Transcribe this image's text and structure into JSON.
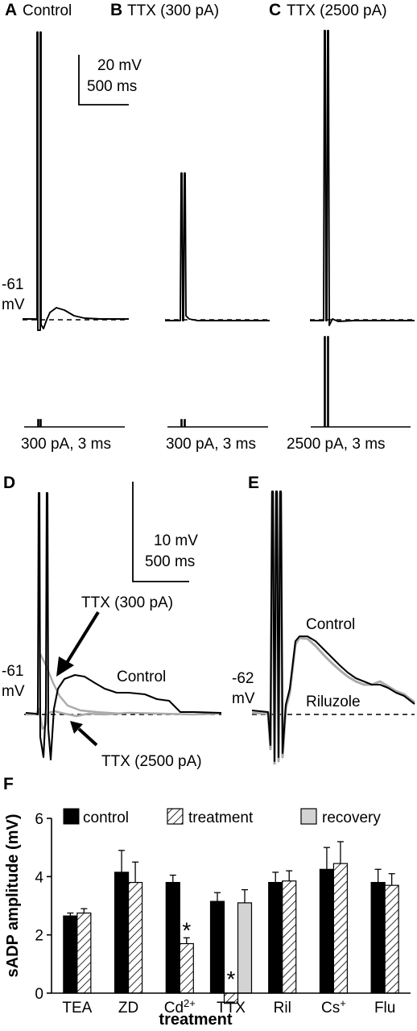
{
  "panels": {
    "A": {
      "letter": "A",
      "title": "Control"
    },
    "B": {
      "letter": "B",
      "title": "TTX (300 pA)"
    },
    "C": {
      "letter": "C",
      "title": "TTX (2500 pA)"
    },
    "D": {
      "letter": "D"
    },
    "E": {
      "letter": "E"
    },
    "F": {
      "letter": "F"
    }
  },
  "top_row": {
    "scale_bar": {
      "voltage": "20 mV",
      "time": "500 ms"
    },
    "rest_potential": {
      "value": "-61",
      "unit": "mV"
    },
    "stimulus_labels": [
      "300 pA, 3 ms",
      "300 pA, 3 ms",
      "2500 pA, 3 ms"
    ]
  },
  "panel_d": {
    "scale_bar": {
      "voltage": "10 mV",
      "time": "500 ms"
    },
    "rest_potential": {
      "value": "-61",
      "unit": "mV"
    },
    "annotations": {
      "ttx_300": "TTX (300 pA)",
      "control": "Control",
      "ttx_2500": "TTX (2500 pA)"
    }
  },
  "panel_e": {
    "rest_potential": {
      "value": "-62",
      "unit": "mV"
    },
    "annotations": {
      "control": "Control",
      "riluzole": "Riluzole"
    }
  },
  "chart_data": {
    "type": "bar",
    "xlabel": "treatment",
    "ylabel": "sADP amplitude (mV)",
    "ylim": [
      0,
      6
    ],
    "yticks": [
      "0",
      "2",
      "4",
      "6"
    ],
    "categories": [
      "TEA",
      "ZD",
      "Cd2+",
      "TTX",
      "Ril",
      "Cs+",
      "Flu"
    ],
    "category_labels": [
      {
        "base": "TEA",
        "sup": ""
      },
      {
        "base": "ZD",
        "sup": ""
      },
      {
        "base": "Cd",
        "sup": "2+"
      },
      {
        "base": "TTX",
        "sup": ""
      },
      {
        "base": "Ril",
        "sup": ""
      },
      {
        "base": "Cs",
        "sup": "+"
      },
      {
        "base": "Flu",
        "sup": ""
      }
    ],
    "series": [
      {
        "name": "control",
        "fill": "#000000",
        "values": [
          2.65,
          4.15,
          3.8,
          3.15,
          3.8,
          4.25,
          3.8
        ],
        "errors": [
          0.1,
          0.75,
          0.25,
          0.3,
          0.35,
          0.75,
          0.45
        ]
      },
      {
        "name": "treatment",
        "fill": "hatch",
        "values": [
          2.75,
          3.8,
          1.7,
          -0.35,
          3.85,
          4.45,
          3.7
        ],
        "errors": [
          0.15,
          0.7,
          0.2,
          0,
          0.35,
          0.75,
          0.4
        ]
      },
      {
        "name": "recovery",
        "fill": "#d3d3d3",
        "values": [
          null,
          null,
          null,
          3.1,
          null,
          null,
          null
        ],
        "errors": [
          null,
          null,
          null,
          0.45,
          null,
          null,
          null
        ]
      }
    ],
    "significance": [
      {
        "category": "Cd2+",
        "series": "treatment",
        "mark": "*"
      },
      {
        "category": "TTX",
        "series": "treatment",
        "mark": "*"
      }
    ],
    "legend_position": "top"
  }
}
